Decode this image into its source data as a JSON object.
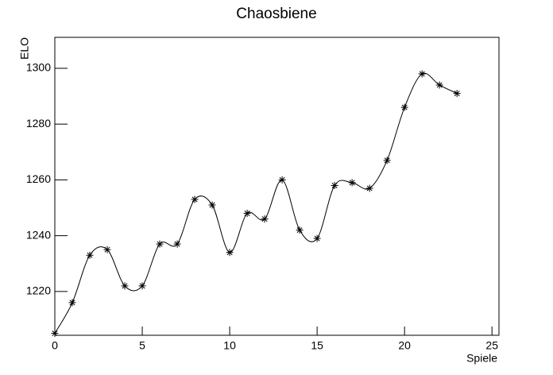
{
  "chart_data": {
    "type": "line",
    "title": "Chaosbiene",
    "xlabel": "Spiele",
    "ylabel": "ELO",
    "x": [
      0,
      1,
      2,
      3,
      4,
      5,
      6,
      7,
      8,
      9,
      10,
      11,
      12,
      13,
      14,
      15,
      16,
      17,
      18,
      19,
      20,
      21,
      22,
      23
    ],
    "series": [
      {
        "color": "#000000",
        "values": [
          1205,
          1216,
          1233,
          1235,
          1222,
          1222,
          1237,
          1237,
          1253,
          1251,
          1234,
          1248,
          1246,
          1260,
          1242,
          1239,
          1258,
          1259,
          1257,
          1267,
          1286,
          1298,
          1294,
          1291
        ]
      }
    ],
    "xlim": [
      0,
      25.4
    ],
    "ylim": [
      1204.3,
      1311.1
    ],
    "xticks": [
      0,
      5,
      10,
      15,
      20,
      25
    ],
    "yticks": [
      1220,
      1240,
      1260,
      1280,
      1300
    ]
  }
}
